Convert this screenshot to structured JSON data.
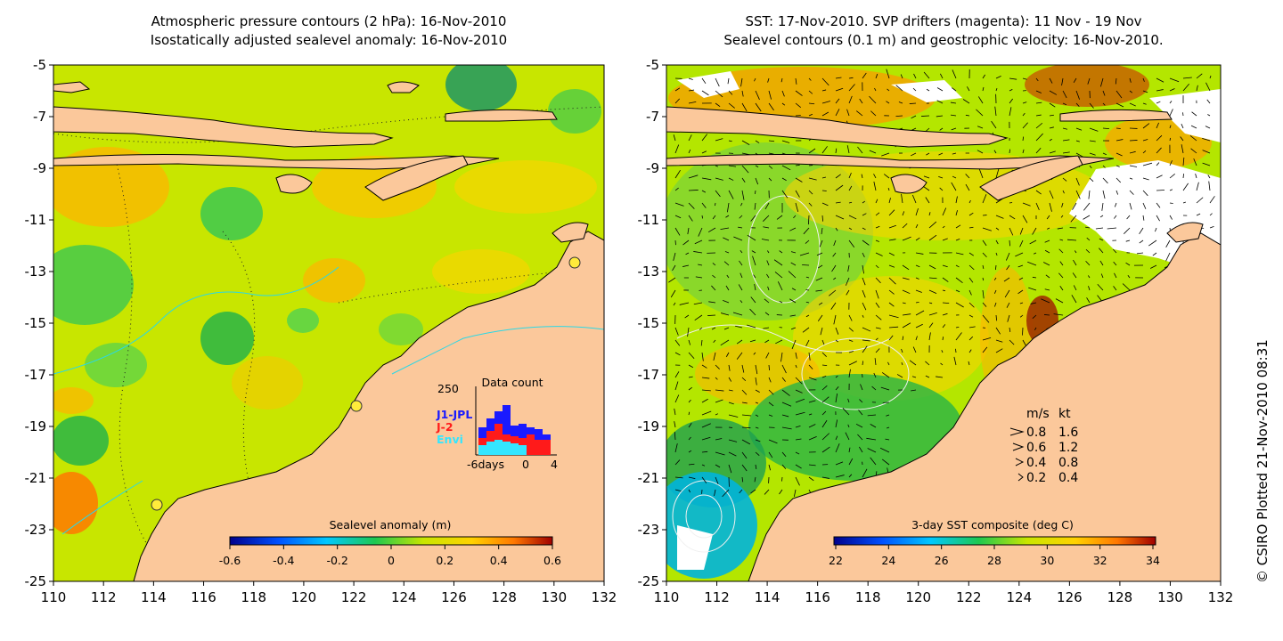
{
  "left_panel": {
    "title_line1": "Atmospheric pressure contours (2 hPa): 16-Nov-2010",
    "title_line2": "Isostatically adjusted sealevel anomaly: 16-Nov-2010",
    "colorbar": {
      "label": "Sealevel anomaly (m)",
      "ticks": [
        "-0.6",
        "-0.4",
        "-0.2",
        "0",
        "0.2",
        "0.4",
        "0.6"
      ]
    },
    "data_count": {
      "title": "Data count",
      "ymax_label": "250",
      "legend": [
        "J1-JPL",
        "J-2",
        "Envi"
      ],
      "x_ticks": [
        "-6days",
        "0",
        "4"
      ],
      "colors": {
        "J1-JPL": "#1a1aff",
        "J-2": "#ff1a1a",
        "Envi": "#33e6ff"
      }
    }
  },
  "right_panel": {
    "title_line1": "SST: 17-Nov-2010. SVP drifters (magenta): 11 Nov - 19 Nov",
    "title_line2": "Sealevel contours (0.1 m) and geostrophic velocity: 16-Nov-2010.",
    "colorbar": {
      "label": "3-day SST composite (deg C)",
      "ticks": [
        "22",
        "24",
        "26",
        "28",
        "30",
        "32",
        "34"
      ]
    },
    "velocity_legend": {
      "header": [
        "m/s",
        "kt"
      ],
      "rows": [
        [
          "0.8",
          "1.6"
        ],
        [
          "0.6",
          "1.2"
        ],
        [
          "0.4",
          "0.8"
        ],
        [
          "0.2",
          "0.4"
        ]
      ]
    }
  },
  "axes": {
    "lon_ticks": [
      "110",
      "112",
      "114",
      "116",
      "118",
      "120",
      "122",
      "124",
      "126",
      "128",
      "130",
      "132"
    ],
    "lat_ticks": [
      "-5",
      "-7",
      "-9",
      "-11",
      "-13",
      "-15",
      "-17",
      "-19",
      "-21",
      "-23",
      "-25"
    ]
  },
  "credit": "© CSIRO Plotted 21-Nov-2010 08:31",
  "colors": {
    "land": "#fbc89b",
    "ocean_base": "#c8e600",
    "white_cloud": "#ffffff"
  }
}
